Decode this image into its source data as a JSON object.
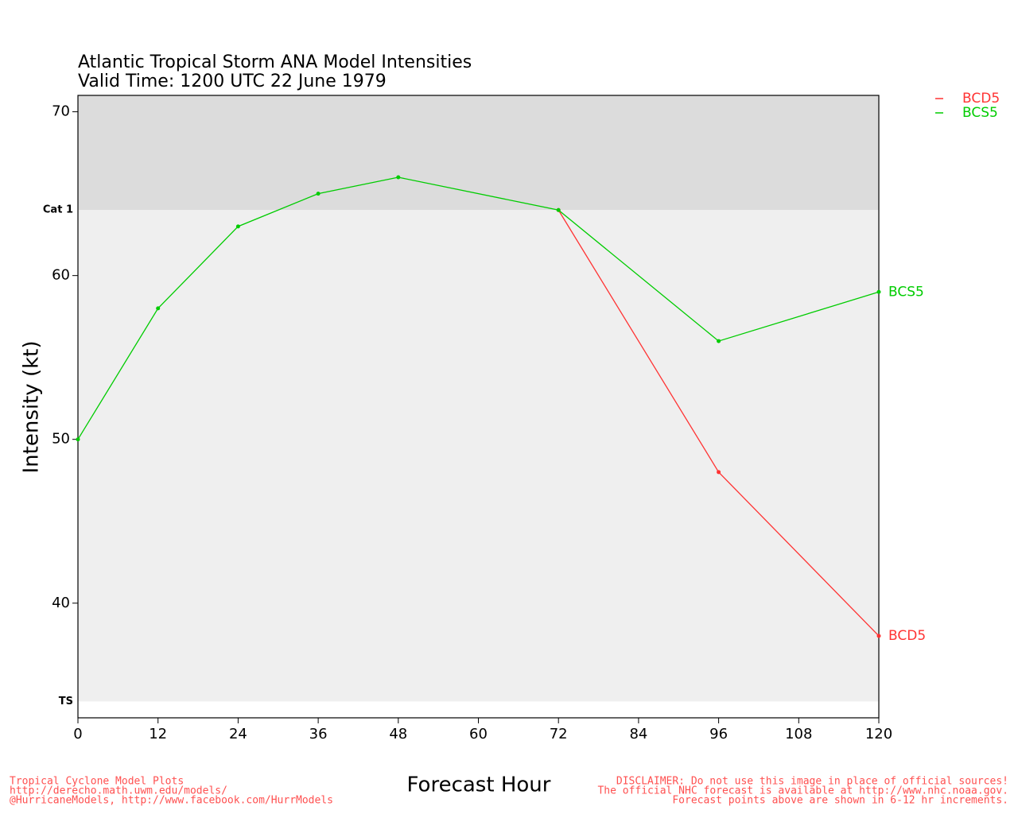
{
  "chart_data": {
    "type": "line",
    "title": "Atlantic Tropical Storm ANA Model Intensities",
    "subtitle": "Valid Time: 1200 UTC 22 June 1979",
    "x_label": "Forecast Hour",
    "y_label": "Intensity (kt)",
    "x": [
      0,
      12,
      24,
      36,
      48,
      72,
      96,
      120
    ],
    "series": [
      {
        "name": "BCD5",
        "color": "#ff3333",
        "values": [
          null,
          null,
          null,
          null,
          null,
          64,
          48,
          38
        ]
      },
      {
        "name": "BCS5",
        "color": "#00cc00",
        "values": [
          50,
          58,
          63,
          65,
          66,
          64,
          56,
          59
        ]
      }
    ],
    "xlim": [
      0,
      120
    ],
    "xticks": [
      0,
      12,
      24,
      36,
      48,
      60,
      72,
      84,
      96,
      108,
      120
    ],
    "ylim": [
      33,
      71
    ],
    "yticks": [
      40,
      50,
      60,
      70
    ],
    "thresholds": [
      {
        "value": 64,
        "label": "Cat 1",
        "color": "#dcdcdc"
      },
      {
        "value": 34,
        "label": "TS",
        "color": "#efefef"
      }
    ],
    "legend": "top-right",
    "footer_left": [
      "Tropical Cyclone Model Plots",
      "http://derecho.math.uwm.edu/models/",
      "@HurricaneModels, http://www.facebook.com/HurrModels"
    ],
    "footer_right": [
      "DISCLAIMER: Do not use this image in place of official sources!",
      "The official NHC forecast is available at http://www.nhc.noaa.gov.",
      "Forecast points above are shown in 6-12 hr increments."
    ]
  }
}
